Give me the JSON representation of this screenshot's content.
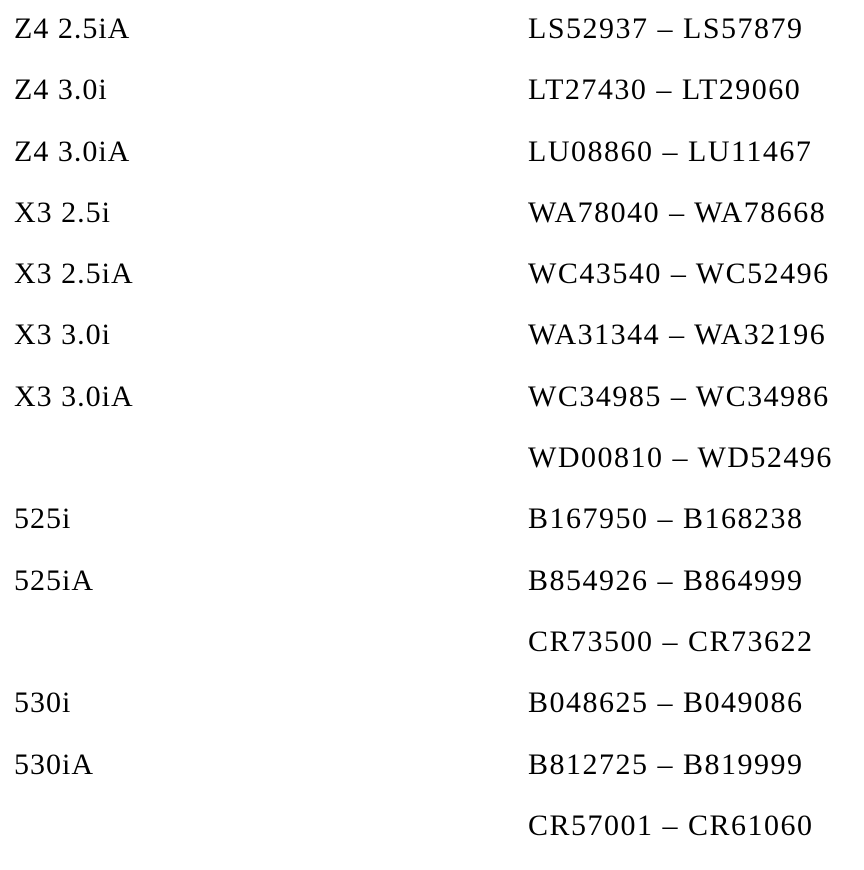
{
  "document": {
    "rows": [
      {
        "model": "Z4 2.5iA",
        "range": "LS52937 – LS57879"
      },
      {
        "model": "Z4 3.0i",
        "range": "LT27430 – LT29060"
      },
      {
        "model": "Z4 3.0iA",
        "range": "LU08860 – LU11467"
      },
      {
        "model": "X3 2.5i",
        "range": "WA78040 – WA78668"
      },
      {
        "model": "X3 2.5iA",
        "range": "WC43540 – WC52496"
      },
      {
        "model": "X3 3.0i",
        "range": "WA31344 – WA32196"
      },
      {
        "model": "X3 3.0iA",
        "range": "WC34985 – WC34986"
      },
      {
        "model": "",
        "range": "WD00810 – WD52496"
      },
      {
        "model": "525i",
        "range": "B167950 – B168238"
      },
      {
        "model": "525iA",
        "range": "B854926 – B864999"
      },
      {
        "model": "",
        "range": "CR73500 – CR73622"
      },
      {
        "model": "530i",
        "range": "B048625 – B049086"
      },
      {
        "model": "530iA",
        "range": "B812725 – B819999"
      },
      {
        "model": "",
        "range": "CR57001 – CR61060"
      }
    ]
  }
}
